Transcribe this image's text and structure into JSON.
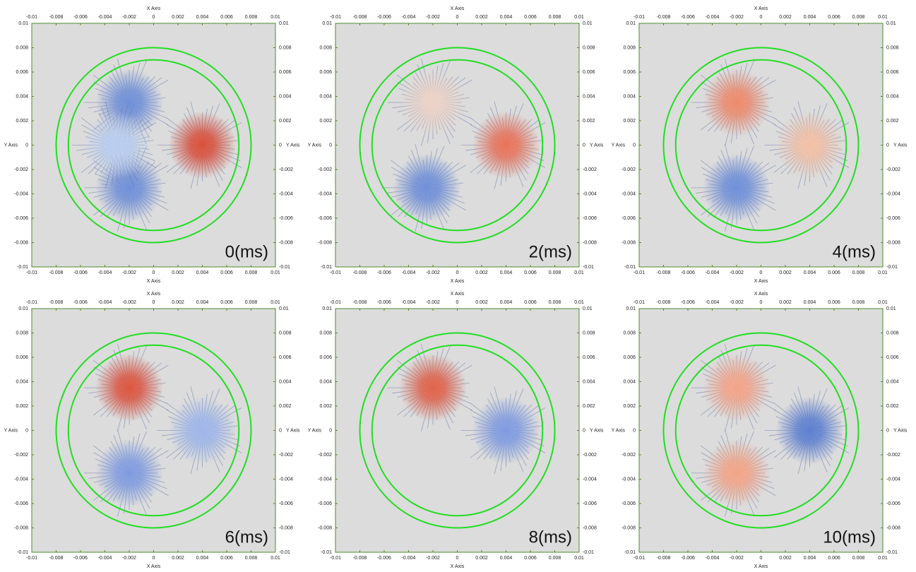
{
  "chart_data": [
    {
      "type": "field",
      "annotation": "0(ms)",
      "x_label": "X Axis",
      "y_label": "Y Axis",
      "xlim": [
        -0.01,
        0.01
      ],
      "ylim": [
        -0.01,
        0.01
      ],
      "xticks": [
        -0.01,
        -0.008,
        -0.006,
        -0.004,
        -0.002,
        0,
        0.002,
        0.004,
        0.006,
        0.008,
        0.01
      ],
      "yticks": [
        -0.01,
        -0.008,
        -0.006,
        -0.004,
        -0.002,
        0,
        0.002,
        0.004,
        0.006,
        0.008,
        0.01
      ],
      "circles": [
        {
          "r": 0.008,
          "color": "#22dd22"
        },
        {
          "r": 0.007,
          "color": "#22dd22"
        }
      ],
      "sources": [
        {
          "x": 0.004,
          "y": 0,
          "color": "#d9503c"
        },
        {
          "x": -0.002,
          "y": 0.0035,
          "color": "#6f8fd8"
        },
        {
          "x": -0.002,
          "y": -0.0035,
          "color": "#6f8fd8"
        },
        {
          "x": -0.003,
          "y": 0,
          "color": "#b9cdf0"
        }
      ]
    },
    {
      "type": "field",
      "annotation": "2(ms)",
      "x_label": "X Axis",
      "y_label": "Y Axis",
      "xlim": [
        -0.01,
        0.01
      ],
      "ylim": [
        -0.01,
        0.01
      ],
      "xticks": [
        -0.01,
        -0.008,
        -0.006,
        -0.004,
        -0.002,
        0,
        0.002,
        0.004,
        0.006,
        0.008,
        0.01
      ],
      "yticks": [
        -0.01,
        -0.008,
        -0.006,
        -0.004,
        -0.002,
        0,
        0.002,
        0.004,
        0.006,
        0.008,
        0.01
      ],
      "circles": [
        {
          "r": 0.008,
          "color": "#22dd22"
        },
        {
          "r": 0.007,
          "color": "#22dd22"
        }
      ],
      "sources": [
        {
          "x": 0.004,
          "y": 0,
          "color": "#e8735a"
        },
        {
          "x": -0.0025,
          "y": -0.0035,
          "color": "#6f8fd8"
        },
        {
          "x": -0.002,
          "y": 0.0035,
          "color": "#ecd2c6"
        }
      ]
    },
    {
      "type": "field",
      "annotation": "4(ms)",
      "x_label": "X Axis",
      "y_label": "Y Axis",
      "xlim": [
        -0.01,
        0.01
      ],
      "ylim": [
        -0.01,
        0.01
      ],
      "xticks": [
        -0.01,
        -0.008,
        -0.006,
        -0.004,
        -0.002,
        0,
        0.002,
        0.004,
        0.006,
        0.008,
        0.01
      ],
      "yticks": [
        -0.01,
        -0.008,
        -0.006,
        -0.004,
        -0.002,
        0,
        0.002,
        0.004,
        0.006,
        0.008,
        0.01
      ],
      "circles": [
        {
          "r": 0.008,
          "color": "#22dd22"
        },
        {
          "r": 0.007,
          "color": "#22dd22"
        }
      ],
      "sources": [
        {
          "x": -0.002,
          "y": 0.0035,
          "color": "#ee8a6c"
        },
        {
          "x": 0.004,
          "y": 0,
          "color": "#f3c0a6"
        },
        {
          "x": -0.002,
          "y": -0.0035,
          "color": "#6f8fd8"
        }
      ]
    },
    {
      "type": "field",
      "annotation": "6(ms)",
      "x_label": "X Axis",
      "y_label": "Y Axis",
      "xlim": [
        -0.01,
        0.01
      ],
      "ylim": [
        -0.01,
        0.01
      ],
      "xticks": [
        -0.01,
        -0.008,
        -0.006,
        -0.004,
        -0.002,
        0,
        0.002,
        0.004,
        0.006,
        0.008,
        0.01
      ],
      "yticks": [
        -0.01,
        -0.008,
        -0.006,
        -0.004,
        -0.002,
        0,
        0.002,
        0.004,
        0.006,
        0.008,
        0.01
      ],
      "circles": [
        {
          "r": 0.008,
          "color": "#22dd22"
        },
        {
          "r": 0.007,
          "color": "#22dd22"
        }
      ],
      "sources": [
        {
          "x": -0.002,
          "y": 0.0035,
          "color": "#dc5540"
        },
        {
          "x": 0.004,
          "y": 0,
          "color": "#9fb6ea"
        },
        {
          "x": -0.002,
          "y": -0.0035,
          "color": "#7f9be0"
        }
      ]
    },
    {
      "type": "field",
      "annotation": "8(ms)",
      "x_label": "X Axis",
      "y_label": "Y Axis",
      "xlim": [
        -0.01,
        0.01
      ],
      "ylim": [
        -0.01,
        0.01
      ],
      "xticks": [
        -0.01,
        -0.008,
        -0.006,
        -0.004,
        -0.002,
        0,
        0.002,
        0.004,
        0.006,
        0.008,
        0.01
      ],
      "yticks": [
        -0.01,
        -0.008,
        -0.006,
        -0.004,
        -0.002,
        0,
        0.002,
        0.004,
        0.006,
        0.008,
        0.01
      ],
      "circles": [
        {
          "r": 0.008,
          "color": "#22dd22"
        },
        {
          "r": 0.007,
          "color": "#22dd22"
        }
      ],
      "sources": [
        {
          "x": -0.002,
          "y": 0.0035,
          "color": "#e0624a"
        },
        {
          "x": 0.004,
          "y": 0,
          "color": "#7f9be0"
        }
      ]
    },
    {
      "type": "field",
      "annotation": "10(ms)",
      "x_label": "X Axis",
      "y_label": "Y Axis",
      "xlim": [
        -0.01,
        0.01
      ],
      "ylim": [
        -0.01,
        0.01
      ],
      "xticks": [
        -0.01,
        -0.008,
        -0.006,
        -0.004,
        -0.002,
        0,
        0.002,
        0.004,
        0.006,
        0.008,
        0.01
      ],
      "yticks": [
        -0.01,
        -0.008,
        -0.006,
        -0.004,
        -0.002,
        0,
        0.002,
        0.004,
        0.006,
        0.008,
        0.01
      ],
      "circles": [
        {
          "r": 0.008,
          "color": "#22dd22"
        },
        {
          "r": 0.007,
          "color": "#22dd22"
        }
      ],
      "sources": [
        {
          "x": -0.002,
          "y": 0.0035,
          "color": "#f3a487"
        },
        {
          "x": -0.002,
          "y": -0.0035,
          "color": "#f3a487"
        },
        {
          "x": 0.004,
          "y": 0,
          "color": "#5d7fd0"
        }
      ]
    }
  ]
}
